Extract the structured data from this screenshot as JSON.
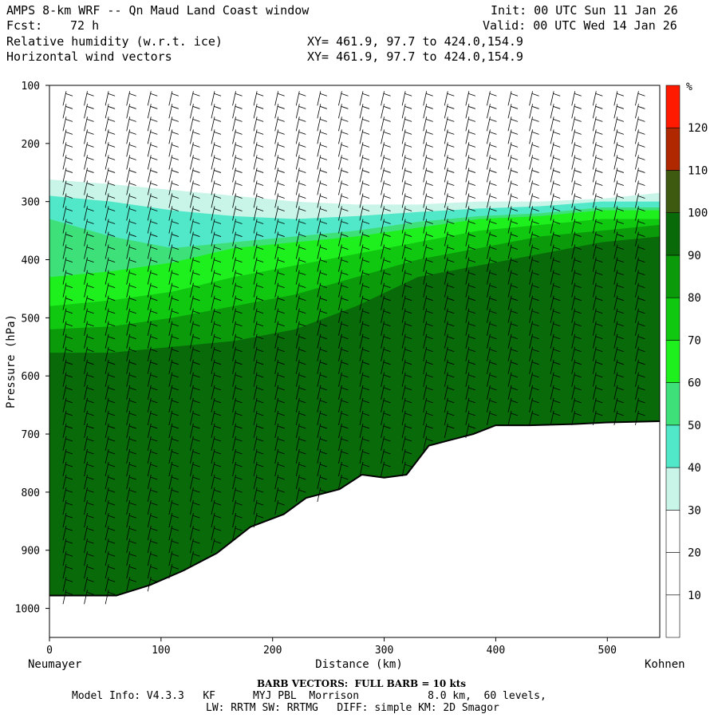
{
  "header": {
    "title": "AMPS 8-km WRF -- Qn Maud Land Coast window",
    "fcst_label": "Fcst:",
    "fcst_value": "72 h",
    "field1": "Relative humidity (w.r.t. ice)",
    "field2": "Horizontal wind vectors",
    "xy1": "XY= 461.9, 97.7 to 424.0,154.9",
    "xy2": "XY= 461.9, 97.7 to 424.0,154.9",
    "init": "Init: 00 UTC Sun 11 Jan 26",
    "valid": "Valid: 00 UTC Wed 14 Jan 26"
  },
  "footer": {
    "barb_note": "BARB VECTORS:  FULL BARB = 10 kts",
    "model_line1": "Model Info: V4.3.3   KF      MYJ PBL  Morrison           8.0 km,  60 levels,",
    "model_line2": "LW: RRTM SW: RRTMG   DIFF: simple KM: 2D Smagor"
  },
  "chart_data": {
    "type": "heatmap",
    "title": "Relative humidity (w.r.t. ice)",
    "xlabel": "Distance (km)",
    "ylabel": "Pressure (hPa)",
    "xlim": [
      0,
      547
    ],
    "ylim": [
      1050,
      100
    ],
    "x_ticks": [
      0,
      100,
      200,
      300,
      400,
      500
    ],
    "y_ticks": [
      100,
      200,
      300,
      400,
      500,
      600,
      700,
      800,
      900,
      1000
    ],
    "x_endpoints": {
      "left": "Neumayer",
      "right": "Kohnen"
    },
    "colorbar": {
      "unit": "%",
      "levels": [
        10,
        20,
        30,
        40,
        50,
        60,
        70,
        80,
        90,
        100,
        110,
        120
      ],
      "colors": [
        "#ffffff",
        "#ffffff",
        "#ffffff",
        "#c8f5e8",
        "#50e8c8",
        "#3ee07a",
        "#1ef01e",
        "#10c810",
        "#0a9a0a",
        "#086a08",
        "#3e5a10",
        "#b02800",
        "#ff1a00"
      ]
    },
    "terrain_surface": {
      "x": [
        0,
        30,
        60,
        90,
        120,
        150,
        180,
        210,
        230,
        260,
        280,
        300,
        320,
        340,
        360,
        380,
        400,
        430,
        470,
        500,
        547
      ],
      "pressure": [
        978,
        978,
        978,
        960,
        935,
        905,
        860,
        838,
        810,
        795,
        770,
        775,
        770,
        720,
        710,
        700,
        685,
        685,
        683,
        680,
        678
      ]
    },
    "rh_bands": [
      {
        "label": "<30 (upper dry)",
        "top_pressure": [
          100,
          100,
          100,
          100,
          100,
          100,
          100,
          100,
          100,
          100,
          100
        ],
        "bottom_pressure": [
          262,
          270,
          280,
          290,
          300,
          305,
          305,
          300,
          300,
          295,
          285
        ]
      },
      {
        "label": "30-40 layer top",
        "pressure": [
          262,
          270,
          280,
          290,
          300,
          305,
          305,
          300,
          300,
          295,
          285
        ]
      },
      {
        "label": "40-50 layer top",
        "pressure": [
          290,
          300,
          315,
          325,
          330,
          325,
          318,
          312,
          308,
          300,
          300
        ]
      },
      {
        "label": "50-60 layer top",
        "pressure": [
          330,
          360,
          380,
          370,
          360,
          350,
          335,
          325,
          320,
          310,
          310
        ]
      },
      {
        "label": "60-70 layer top",
        "pressure": [
          430,
          420,
          405,
          380,
          370,
          360,
          345,
          330,
          325,
          315,
          315
        ]
      },
      {
        "label": "70-80 layer top",
        "pressure": [
          480,
          470,
          455,
          430,
          410,
          390,
          370,
          350,
          340,
          330,
          330
        ]
      },
      {
        "label": "80-90 layer top",
        "pressure": [
          520,
          515,
          500,
          480,
          460,
          430,
          400,
          380,
          360,
          350,
          340
        ]
      },
      {
        "label": "90-100 layer top",
        "pressure": [
          560,
          560,
          550,
          540,
          520,
          480,
          430,
          410,
          390,
          370,
          360
        ]
      }
    ],
    "columns_x": [
      0,
      55,
      110,
      165,
      220,
      275,
      330,
      385,
      440,
      495,
      547
    ]
  }
}
